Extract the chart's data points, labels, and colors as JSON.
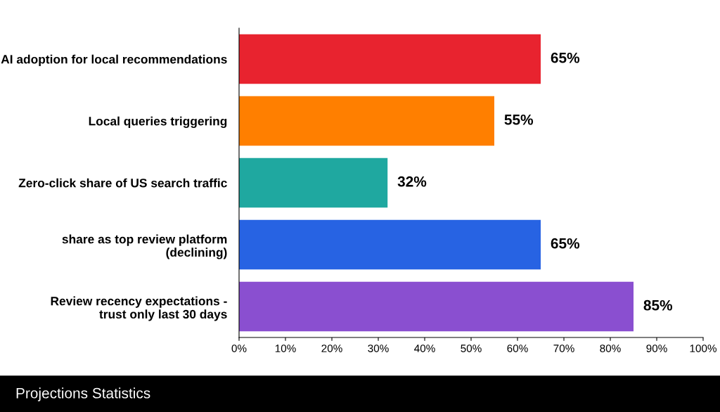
{
  "chart_data": {
    "type": "bar",
    "orientation": "horizontal",
    "title": "Projections Statistics",
    "categories": [
      "AI adoption for local recommendations",
      "Local queries triggering",
      "Zero-click share of US search traffic",
      "share as top review platform\n(declining)",
      "Review recency expectations -\ntrust only last 30 days"
    ],
    "values": [
      65,
      55,
      32,
      65,
      85
    ],
    "colors": [
      "#e8232f",
      "#ff7f00",
      "#1fa8a0",
      "#2763e3",
      "#8a4fd0"
    ],
    "value_labels": [
      "65%",
      "55%",
      "32%",
      "65%",
      "85%"
    ],
    "xlim": [
      0,
      100
    ],
    "xticks": [
      {
        "value": 0,
        "label": "0%"
      },
      {
        "value": 10,
        "label": "10%"
      },
      {
        "value": 20,
        "label": "20%"
      },
      {
        "value": 30,
        "label": "30%"
      },
      {
        "value": 40,
        "label": "40%"
      },
      {
        "value": 50,
        "label": "50%"
      },
      {
        "value": 60,
        "label": "60%"
      },
      {
        "value": 70,
        "label": "70%"
      },
      {
        "value": 80,
        "label": "80%"
      },
      {
        "value": 90,
        "label": "90%"
      },
      {
        "value": 100,
        "label": "100%"
      }
    ],
    "grid": false,
    "legend": false
  }
}
